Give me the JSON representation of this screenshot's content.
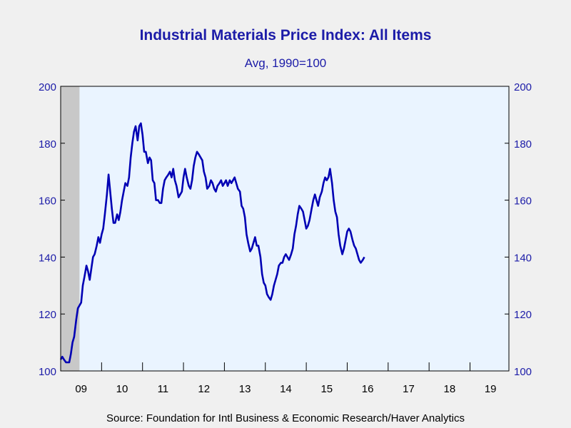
{
  "chart_data": {
    "type": "line",
    "title": "Industrial Materials Price Index: All Items",
    "subtitle": "Avg, 1990=100",
    "source": "Source:  Foundation for Intl Business & Economic Research/Haver Analytics",
    "xlabel": "",
    "ylabel": "",
    "ylim": [
      100,
      200
    ],
    "xlim": [
      2009.0,
      2019.95
    ],
    "yticks": [
      100,
      120,
      140,
      160,
      180,
      200
    ],
    "xtick_labels": [
      "09",
      "10",
      "11",
      "12",
      "13",
      "14",
      "15",
      "16",
      "17",
      "18",
      "19"
    ],
    "recession_shading": [
      2009.0,
      2009.46
    ],
    "grid": false,
    "line_color": "#0000b4",
    "background_color": "#eaf4ff",
    "shade_color": "#c8c8c8",
    "series": [
      {
        "values": [
          [
            2009.0,
            104
          ],
          [
            2009.04,
            105
          ],
          [
            2009.08,
            104
          ],
          [
            2009.13,
            103
          ],
          [
            2009.17,
            103
          ],
          [
            2009.21,
            103
          ],
          [
            2009.25,
            106
          ],
          [
            2009.29,
            110
          ],
          [
            2009.33,
            112
          ],
          [
            2009.38,
            118
          ],
          [
            2009.42,
            122
          ],
          [
            2009.46,
            123
          ],
          [
            2009.5,
            124
          ],
          [
            2009.54,
            130
          ],
          [
            2009.58,
            133
          ],
          [
            2009.63,
            137
          ],
          [
            2009.67,
            135
          ],
          [
            2009.71,
            132
          ],
          [
            2009.75,
            136
          ],
          [
            2009.79,
            140
          ],
          [
            2009.83,
            141
          ],
          [
            2009.88,
            144
          ],
          [
            2009.92,
            147
          ],
          [
            2009.96,
            145
          ],
          [
            2010.0,
            148
          ],
          [
            2010.04,
            150
          ],
          [
            2010.08,
            155
          ],
          [
            2010.13,
            162
          ],
          [
            2010.17,
            169
          ],
          [
            2010.21,
            163
          ],
          [
            2010.25,
            157
          ],
          [
            2010.29,
            152
          ],
          [
            2010.33,
            152
          ],
          [
            2010.38,
            155
          ],
          [
            2010.42,
            153
          ],
          [
            2010.46,
            156
          ],
          [
            2010.5,
            160
          ],
          [
            2010.54,
            163
          ],
          [
            2010.58,
            166
          ],
          [
            2010.63,
            165
          ],
          [
            2010.67,
            168
          ],
          [
            2010.71,
            175
          ],
          [
            2010.75,
            180
          ],
          [
            2010.79,
            184
          ],
          [
            2010.83,
            186
          ],
          [
            2010.88,
            181
          ],
          [
            2010.92,
            186
          ],
          [
            2010.96,
            187
          ],
          [
            2011.0,
            183
          ],
          [
            2011.04,
            177
          ],
          [
            2011.08,
            177
          ],
          [
            2011.13,
            173
          ],
          [
            2011.17,
            175
          ],
          [
            2011.21,
            174
          ],
          [
            2011.25,
            167
          ],
          [
            2011.29,
            166
          ],
          [
            2011.33,
            160
          ],
          [
            2011.38,
            160
          ],
          [
            2011.42,
            159
          ],
          [
            2011.46,
            159
          ],
          [
            2011.5,
            164
          ],
          [
            2011.54,
            167
          ],
          [
            2011.58,
            168
          ],
          [
            2011.63,
            169
          ],
          [
            2011.67,
            170
          ],
          [
            2011.71,
            168
          ],
          [
            2011.75,
            171
          ],
          [
            2011.79,
            167
          ],
          [
            2011.83,
            165
          ],
          [
            2011.88,
            161
          ],
          [
            2011.92,
            162
          ],
          [
            2011.96,
            163
          ],
          [
            2012.0,
            168
          ],
          [
            2012.04,
            171
          ],
          [
            2012.08,
            168
          ],
          [
            2012.13,
            165
          ],
          [
            2012.17,
            164
          ],
          [
            2012.21,
            167
          ],
          [
            2012.25,
            172
          ],
          [
            2012.29,
            175
          ],
          [
            2012.33,
            177
          ],
          [
            2012.38,
            176
          ],
          [
            2012.42,
            175
          ],
          [
            2012.46,
            174
          ],
          [
            2012.5,
            170
          ],
          [
            2012.54,
            168
          ],
          [
            2012.58,
            164
          ],
          [
            2012.63,
            165
          ],
          [
            2012.67,
            167
          ],
          [
            2012.71,
            166
          ],
          [
            2012.75,
            164
          ],
          [
            2012.79,
            163
          ],
          [
            2012.83,
            165
          ],
          [
            2012.88,
            166
          ],
          [
            2012.92,
            167
          ],
          [
            2012.96,
            165
          ],
          [
            2013.0,
            166
          ],
          [
            2013.04,
            167
          ],
          [
            2013.08,
            165
          ],
          [
            2013.13,
            167
          ],
          [
            2013.17,
            166
          ],
          [
            2013.21,
            167
          ],
          [
            2013.25,
            168
          ],
          [
            2013.29,
            166
          ],
          [
            2013.33,
            164
          ],
          [
            2013.38,
            163
          ],
          [
            2013.42,
            158
          ],
          [
            2013.46,
            157
          ],
          [
            2013.5,
            154
          ],
          [
            2013.54,
            148
          ],
          [
            2013.58,
            145
          ],
          [
            2013.63,
            142
          ],
          [
            2013.67,
            143
          ],
          [
            2013.71,
            145
          ],
          [
            2013.75,
            147
          ],
          [
            2013.79,
            144
          ],
          [
            2013.83,
            144
          ],
          [
            2013.88,
            140
          ],
          [
            2013.92,
            134
          ],
          [
            2013.96,
            131
          ],
          [
            2014.0,
            130
          ],
          [
            2014.04,
            127
          ],
          [
            2014.08,
            126
          ],
          [
            2014.13,
            125
          ],
          [
            2014.17,
            127
          ],
          [
            2014.21,
            130
          ],
          [
            2014.25,
            132
          ],
          [
            2014.29,
            134
          ],
          [
            2014.33,
            137
          ],
          [
            2014.38,
            138
          ],
          [
            2014.42,
            138
          ],
          [
            2014.46,
            140
          ],
          [
            2014.5,
            141
          ],
          [
            2014.54,
            140
          ],
          [
            2014.58,
            139
          ],
          [
            2014.63,
            141
          ],
          [
            2014.67,
            143
          ],
          [
            2014.71,
            148
          ],
          [
            2014.75,
            151
          ],
          [
            2014.79,
            155
          ],
          [
            2014.83,
            158
          ],
          [
            2014.88,
            157
          ],
          [
            2014.92,
            156
          ],
          [
            2014.96,
            153
          ],
          [
            2015.0,
            150
          ],
          [
            2015.04,
            151
          ],
          [
            2015.08,
            153
          ],
          [
            2015.13,
            157
          ],
          [
            2015.17,
            160
          ],
          [
            2015.21,
            162
          ],
          [
            2015.25,
            160
          ],
          [
            2015.29,
            158
          ],
          [
            2015.33,
            161
          ],
          [
            2015.38,
            163
          ],
          [
            2015.42,
            166
          ],
          [
            2015.46,
            168
          ],
          [
            2015.5,
            167
          ],
          [
            2015.54,
            168
          ],
          [
            2015.58,
            171
          ],
          [
            2015.63,
            166
          ],
          [
            2015.67,
            160
          ],
          [
            2015.71,
            156
          ],
          [
            2015.75,
            154
          ],
          [
            2015.79,
            148
          ],
          [
            2015.83,
            144
          ],
          [
            2015.88,
            141
          ],
          [
            2015.92,
            143
          ],
          [
            2015.96,
            146
          ],
          [
            2016.0,
            149
          ],
          [
            2016.04,
            150
          ],
          [
            2016.08,
            149
          ],
          [
            2016.13,
            146
          ],
          [
            2016.17,
            144
          ],
          [
            2016.21,
            143
          ],
          [
            2016.25,
            141
          ],
          [
            2016.29,
            139
          ],
          [
            2016.33,
            138
          ],
          [
            2016.38,
            139
          ],
          [
            2016.42,
            140
          ]
        ]
      }
    ]
  }
}
